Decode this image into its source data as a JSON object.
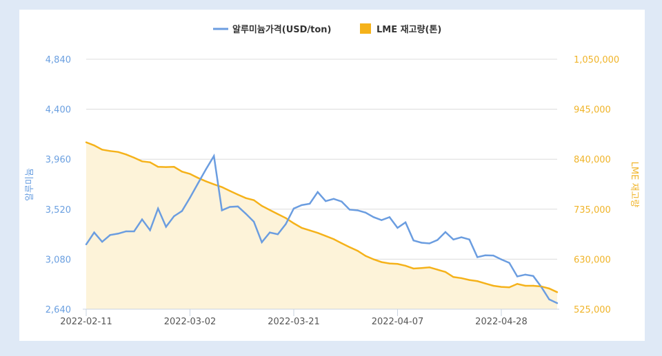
{
  "chart_data": {
    "type": "line",
    "legend_position": "top",
    "grid": true,
    "x_tick_labels": [
      "2022-02-11",
      "2022-03-02",
      "2022-03-21",
      "2022-04-07",
      "2022-04-28"
    ],
    "x_tick_indices": [
      0,
      13,
      26,
      39,
      52
    ],
    "y_left": {
      "label": "알루미늄",
      "ticks": [
        "2,640",
        "3,080",
        "3,520",
        "3,960",
        "4,400",
        "4,840"
      ],
      "range": [
        2640,
        4840
      ],
      "color": "#6a9fe0"
    },
    "y_right": {
      "label": "LME 재고량",
      "ticks": [
        "525,000",
        "630,000",
        "735,000",
        "840,000",
        "945,000",
        "1,050,000"
      ],
      "range": [
        525000,
        1050000
      ],
      "color": "#f0b429"
    },
    "series": [
      {
        "name": "알루미늄가격(USD/ton)",
        "axis": "left",
        "kind": "line",
        "color": "#6b9de0",
        "values": [
          3210,
          3315,
          3233,
          3293,
          3305,
          3325,
          3325,
          3430,
          3335,
          3526,
          3365,
          3458,
          3504,
          3621,
          3747,
          3871,
          3988,
          3510,
          3540,
          3544,
          3480,
          3410,
          3229,
          3315,
          3299,
          3389,
          3526,
          3556,
          3568,
          3671,
          3591,
          3611,
          3587,
          3516,
          3510,
          3490,
          3450,
          3424,
          3450,
          3356,
          3404,
          3245,
          3225,
          3219,
          3249,
          3319,
          3253,
          3273,
          3253,
          3098,
          3114,
          3112,
          3078,
          3048,
          2928,
          2944,
          2932,
          2837,
          2726,
          2693
        ]
      },
      {
        "name": "LME 재고량(톤)",
        "axis": "right",
        "kind": "area",
        "color": "#f5b21a",
        "fill": "#fdf3d9",
        "values": [
          875500,
          869000,
          860100,
          857200,
          855200,
          850000,
          843200,
          835500,
          833500,
          824000,
          823400,
          824000,
          813900,
          809100,
          800800,
          793600,
          787300,
          781500,
          773400,
          765700,
          758300,
          754000,
          742000,
          733300,
          724700,
          716400,
          705400,
          695700,
          690500,
          685200,
          678800,
          672200,
          663500,
          655200,
          647600,
          636900,
          629700,
          623900,
          621000,
          620100,
          616200,
          610400,
          611400,
          612900,
          608000,
          603200,
          592600,
          590200,
          586300,
          583900,
          579000,
          574200,
          571800,
          570900,
          578100,
          574200,
          574200,
          572800,
          568400,
          560700
        ]
      }
    ]
  }
}
